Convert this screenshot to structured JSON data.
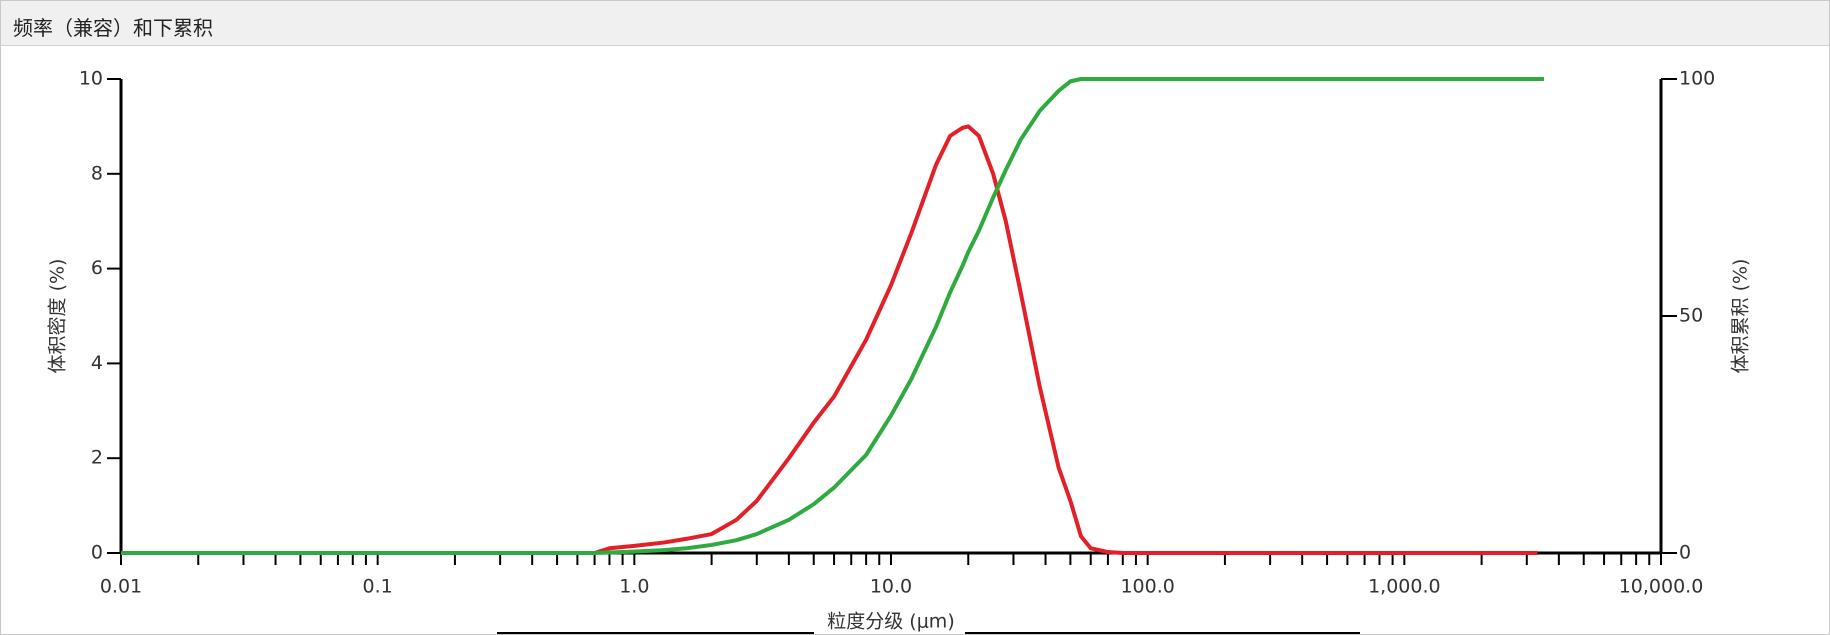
{
  "chart_data": {
    "type": "line",
    "title": "频率（兼容）和下累积",
    "xlabel": "粒度分级 (μm)",
    "ylabel": "体积密度 (%)",
    "y2label": "体积累积 (%)",
    "xscale": "log",
    "xlim": [
      0.01,
      10000
    ],
    "xticks": [
      0.01,
      0.1,
      {
        "value": 1,
        "label": "1.0"
      },
      {
        "value": 10,
        "label": "10.0"
      },
      {
        "value": 100,
        "label": "100.0"
      },
      {
        "value": 1000,
        "label": "1,000.0"
      },
      {
        "value": 10000,
        "label": "10,000.0"
      }
    ],
    "xminorticks": [
      0.02,
      0.03,
      0.04,
      0.05,
      0.06,
      0.07,
      0.08,
      0.09,
      0.2,
      0.3,
      0.4,
      0.5,
      0.6,
      0.7,
      0.8,
      0.9,
      2,
      3,
      4,
      5,
      6,
      7,
      8,
      9,
      20,
      30,
      40,
      50,
      60,
      70,
      80,
      90,
      200,
      300,
      400,
      500,
      600,
      700,
      800,
      900,
      2000,
      3000,
      4000,
      5000,
      6000,
      7000,
      8000,
      9000
    ],
    "ylim": [
      0,
      10
    ],
    "yticks": [
      0,
      2,
      4,
      6,
      8,
      10
    ],
    "y2lim": [
      0,
      100
    ],
    "y2ticks": [
      0,
      50,
      100
    ],
    "x": [
      0.01,
      0.7,
      0.8,
      1.0,
      1.3,
      1.6,
      2.0,
      2.5,
      3.0,
      4.0,
      5.0,
      6.0,
      8.0,
      10,
      12,
      15,
      17,
      19,
      20,
      22,
      25,
      28,
      32,
      38,
      45,
      50,
      55,
      60,
      70,
      80,
      100,
      1000,
      3300,
      3500
    ],
    "series": [
      {
        "name": "体积密度",
        "color": "#e32028",
        "axis": "y",
        "values": [
          null,
          0,
          0.1,
          0.15,
          0.22,
          0.3,
          0.4,
          0.7,
          1.1,
          2.0,
          2.75,
          3.3,
          4.5,
          5.65,
          6.75,
          8.2,
          8.8,
          8.97,
          9.0,
          8.8,
          8.0,
          7.0,
          5.5,
          3.5,
          1.8,
          1.1,
          0.35,
          0.1,
          0.02,
          0,
          0,
          0,
          0,
          null
        ]
      },
      {
        "name": "体积累积",
        "color": "#2eaa3f",
        "axis": "y2",
        "values": [
          0,
          0,
          0.1,
          0.3,
          0.6,
          1,
          1.7,
          2.7,
          4,
          7,
          10.3,
          13.8,
          20.7,
          29,
          36.7,
          47.8,
          55,
          60.6,
          63.5,
          68,
          75,
          80.8,
          87.2,
          93.3,
          97.5,
          99.5,
          100,
          100,
          100,
          100,
          100,
          100,
          100,
          100
        ]
      }
    ]
  }
}
